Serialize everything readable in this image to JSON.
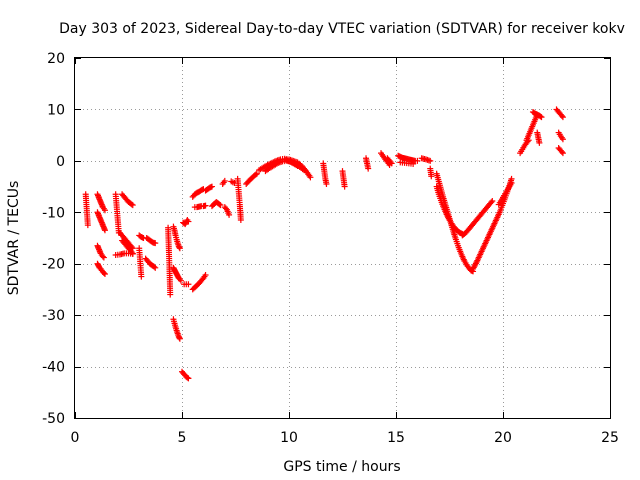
{
  "chart_data": {
    "type": "scatter",
    "title": "Day 303 of 2023, Sidereal Day-to-day VTEC variation (SDTVAR) for receiver kokv",
    "xlabel": "GPS time / hours",
    "ylabel": "SDTVAR / TECUs",
    "xlim": [
      0,
      25
    ],
    "ylim": [
      -50,
      20
    ],
    "x_ticks": [
      0,
      5,
      10,
      15,
      20,
      25
    ],
    "y_ticks": [
      20,
      10,
      0,
      -10,
      -20,
      -30,
      -40,
      -50
    ],
    "x_tick_labels": [
      "0",
      "5",
      "10",
      "15",
      "20",
      "25"
    ],
    "y_tick_labels": [
      "20",
      "10",
      "0",
      "-10",
      "-20",
      "-30",
      "-40",
      "-50"
    ],
    "grid": true,
    "marker": "+",
    "series": [
      {
        "name": "kokv",
        "color": "#ff0000",
        "segments": [
          {
            "x": [
              0.5,
              0.6
            ],
            "y": [
              -6.5,
              -12.5
            ]
          },
          {
            "x": [
              1.05,
              1.1,
              1.15,
              1.2,
              1.25,
              1.3,
              1.35,
              1.4
            ],
            "y": [
              -6.5,
              -7.0,
              -7.5,
              -8.0,
              -8.5,
              -9.0,
              -9.3,
              -9.6
            ]
          },
          {
            "x": [
              1.05,
              1.1,
              1.15,
              1.2,
              1.25,
              1.3,
              1.35,
              1.4
            ],
            "y": [
              -10.0,
              -10.5,
              -11.0,
              -11.5,
              -12.0,
              -12.5,
              -13.0,
              -13.5
            ]
          },
          {
            "x": [
              1.05,
              1.1,
              1.15,
              1.2,
              1.25,
              1.3,
              1.35
            ],
            "y": [
              -16.5,
              -17.0,
              -17.5,
              -18.0,
              -18.3,
              -18.6,
              -18.8
            ]
          },
          {
            "x": [
              1.05,
              1.1,
              1.15,
              1.2,
              1.25,
              1.3,
              1.35,
              1.4
            ],
            "y": [
              -20.0,
              -20.4,
              -20.8,
              -21.0,
              -21.3,
              -21.6,
              -21.8,
              -22.0
            ]
          },
          {
            "x": [
              1.9,
              2.0,
              2.05
            ],
            "y": [
              -6.5,
              -11.5,
              -14.0
            ]
          },
          {
            "x": [
              2.2,
              2.3,
              2.4,
              2.5,
              2.6,
              2.7
            ],
            "y": [
              -6.5,
              -7.0,
              -7.5,
              -8.0,
              -8.3,
              -8.6
            ]
          },
          {
            "x": [
              2.1,
              2.2,
              2.3,
              2.4,
              2.5,
              2.6,
              2.7
            ],
            "y": [
              -14.0,
              -14.5,
              -15.0,
              -15.5,
              -16.0,
              -16.5,
              -17.0
            ]
          },
          {
            "x": [
              2.2,
              2.3,
              2.4,
              2.5,
              2.6,
              2.7
            ],
            "y": [
              -15.5,
              -16.0,
              -16.5,
              -17.0,
              -17.5,
              -18.0
            ]
          },
          {
            "x": [
              1.9,
              2.1,
              2.3,
              2.5,
              2.7
            ],
            "y": [
              -18.3,
              -18.2,
              -18.0,
              -18.0,
              -18.1
            ]
          },
          {
            "x": [
              3.0,
              3.1
            ],
            "y": [
              -17.0,
              -22.5
            ]
          },
          {
            "x": [
              3.0,
              3.1,
              3.2
            ],
            "y": [
              -14.5,
              -14.8,
              -15.0
            ]
          },
          {
            "x": [
              3.35,
              3.45,
              3.55,
              3.65,
              3.75
            ],
            "y": [
              -15.0,
              -15.3,
              -15.6,
              -15.9,
              -16.0
            ]
          },
          {
            "x": [
              3.3,
              3.4,
              3.5,
              3.6,
              3.7,
              3.75
            ],
            "y": [
              -19.0,
              -19.5,
              -20.0,
              -20.3,
              -20.6,
              -20.8
            ]
          },
          {
            "x": [
              4.35,
              4.4,
              4.45
            ],
            "y": [
              -13.0,
              -19.0,
              -26.0
            ]
          },
          {
            "x": [
              4.6,
              4.65,
              4.7,
              4.75,
              4.8,
              4.85,
              4.9
            ],
            "y": [
              -12.8,
              -13.5,
              -14.5,
              -15.3,
              -16.0,
              -16.6,
              -17.0
            ]
          },
          {
            "x": [
              4.6,
              4.65,
              4.7,
              4.75,
              4.8,
              4.85,
              4.9,
              4.95
            ],
            "y": [
              -20.8,
              -21.2,
              -21.6,
              -22.0,
              -22.4,
              -22.8,
              -23.0,
              -23.3
            ]
          },
          {
            "x": [
              4.6,
              4.65,
              4.7,
              4.75,
              4.8,
              4.85,
              4.9
            ],
            "y": [
              -30.8,
              -31.6,
              -32.3,
              -33.0,
              -33.6,
              -34.2,
              -34.6
            ]
          },
          {
            "x": [
              5.0,
              5.1,
              5.2,
              5.3
            ],
            "y": [
              -41.0,
              -41.5,
              -42.0,
              -42.3
            ]
          },
          {
            "x": [
              5.05,
              5.15,
              5.25,
              5.3
            ],
            "y": [
              -12.0,
              -12.3,
              -11.5,
              -11.8
            ]
          },
          {
            "x": [
              5.1,
              5.3
            ],
            "y": [
              -24.0,
              -24.0
            ]
          },
          {
            "x": [
              5.5,
              5.6,
              5.7,
              5.8,
              5.9,
              6.0,
              6.1
            ],
            "y": [
              -25.0,
              -24.6,
              -24.2,
              -23.8,
              -23.3,
              -22.8,
              -22.2
            ]
          },
          {
            "x": [
              5.5,
              5.6,
              5.7,
              5.8,
              5.9,
              6.0
            ],
            "y": [
              -7.0,
              -6.5,
              -6.2,
              -6.0,
              -5.7,
              -5.5
            ]
          },
          {
            "x": [
              5.6,
              5.7,
              5.8,
              5.9,
              6.0,
              6.1
            ],
            "y": [
              -9.0,
              -9.0,
              -8.9,
              -8.8,
              -8.8,
              -8.7
            ]
          },
          {
            "x": [
              6.1,
              6.2,
              6.3,
              6.4
            ],
            "y": [
              -5.8,
              -5.5,
              -5.2,
              -5.0
            ]
          },
          {
            "x": [
              6.4,
              6.5,
              6.6,
              6.7,
              6.8
            ],
            "y": [
              -8.8,
              -8.4,
              -8.0,
              -8.3,
              -8.6
            ]
          },
          {
            "x": [
              6.9,
              7.0
            ],
            "y": [
              -4.5,
              -3.9
            ]
          },
          {
            "x": [
              7.0,
              7.1,
              7.2
            ],
            "y": [
              -9.0,
              -9.5,
              -10.5
            ]
          },
          {
            "x": [
              7.3,
              7.45
            ],
            "y": [
              -4.0,
              -4.3
            ]
          },
          {
            "x": [
              7.6,
              7.7,
              7.75
            ],
            "y": [
              -3.5,
              -8.5,
              -11.5
            ]
          },
          {
            "x": [
              8.0,
              8.1,
              8.2,
              8.3,
              8.4,
              8.5
            ],
            "y": [
              -4.5,
              -4.0,
              -3.6,
              -3.2,
              -2.8,
              -2.5
            ]
          },
          {
            "x": [
              8.6,
              8.8,
              9.0,
              9.2,
              9.4,
              9.6,
              9.8,
              10.0,
              10.2,
              10.4,
              10.6,
              10.8,
              11.0
            ],
            "y": [
              -1.8,
              -1.3,
              -0.8,
              -0.4,
              0.0,
              0.3,
              0.4,
              0.3,
              0.0,
              -0.3,
              -1.0,
              -2.0,
              -3.2
            ]
          },
          {
            "x": [
              8.9,
              9.1,
              9.3,
              9.5,
              9.7,
              9.9,
              10.1,
              10.3,
              10.5,
              10.7
            ],
            "y": [
              -2.0,
              -1.4,
              -0.9,
              -0.4,
              -0.1,
              0.0,
              -0.2,
              -0.6,
              -1.2,
              -1.8
            ]
          },
          {
            "x": [
              9.8,
              10.0,
              10.2,
              10.4
            ],
            "y": [
              0.3,
              0.0,
              -0.5,
              -1.0
            ]
          },
          {
            "x": [
              11.6,
              11.65,
              11.7,
              11.75
            ],
            "y": [
              -0.5,
              -2.0,
              -3.5,
              -4.5
            ]
          },
          {
            "x": [
              12.5,
              12.55,
              12.6
            ],
            "y": [
              -2.0,
              -3.5,
              -5.0
            ]
          },
          {
            "x": [
              13.6,
              13.65,
              13.7
            ],
            "y": [
              0.5,
              -0.5,
              -1.5
            ]
          },
          {
            "x": [
              14.3,
              14.4,
              14.5,
              14.6,
              14.7
            ],
            "y": [
              1.5,
              0.9,
              0.3,
              -0.2,
              -0.8
            ]
          },
          {
            "x": [
              14.6,
              14.7,
              14.8
            ],
            "y": [
              0.5,
              0.0,
              -0.5
            ]
          },
          {
            "x": [
              15.1,
              15.2,
              15.3,
              15.4,
              15.5,
              15.6,
              15.7,
              15.8,
              15.9,
              16.0
            ],
            "y": [
              1.0,
              0.8,
              0.6,
              0.5,
              0.4,
              0.3,
              0.2,
              0.1,
              0.0,
              0.0
            ]
          },
          {
            "x": [
              15.2,
              15.4,
              15.6,
              15.8
            ],
            "y": [
              -0.3,
              -0.4,
              -0.5,
              -0.6
            ]
          },
          {
            "x": [
              16.2,
              16.4,
              16.6
            ],
            "y": [
              0.5,
              0.3,
              0.0
            ]
          },
          {
            "x": [
              16.6,
              16.65
            ],
            "y": [
              -1.5,
              -3.0
            ]
          },
          {
            "x": [
              16.9,
              17.0,
              17.1,
              17.2,
              17.3,
              17.4,
              17.5,
              17.6,
              17.7,
              17.8,
              17.9,
              18.0,
              18.1,
              18.2,
              18.3,
              18.4,
              18.5,
              18.6
            ],
            "y": [
              -2.5,
              -4.0,
              -5.5,
              -7.0,
              -8.4,
              -9.8,
              -11.2,
              -12.6,
              -14.0,
              -15.3,
              -16.5,
              -17.6,
              -18.6,
              -19.5,
              -20.2,
              -20.8,
              -21.3,
              -21.5
            ]
          },
          {
            "x": [
              16.9,
              17.0,
              17.1,
              17.2,
              17.3,
              17.4,
              17.5,
              17.6,
              17.7,
              17.8,
              17.9,
              18.0,
              18.1
            ],
            "y": [
              -5.0,
              -6.5,
              -7.7,
              -8.8,
              -9.8,
              -10.7,
              -11.5,
              -12.2,
              -12.8,
              -13.3,
              -13.7,
              -14.0,
              -14.2
            ]
          },
          {
            "x": [
              18.1,
              18.2,
              18.3,
              18.4,
              18.5,
              18.6,
              18.7,
              18.8,
              18.9,
              19.0,
              19.1,
              19.2,
              19.3,
              19.4,
              19.5
            ],
            "y": [
              -14.5,
              -14.2,
              -13.8,
              -13.3,
              -12.8,
              -12.3,
              -11.8,
              -11.3,
              -10.8,
              -10.3,
              -9.8,
              -9.3,
              -8.8,
              -8.3,
              -7.8
            ]
          },
          {
            "x": [
              18.6,
              18.7,
              18.8,
              18.9,
              19.0,
              19.1,
              19.2,
              19.3,
              19.4,
              19.5,
              19.6,
              19.7,
              19.8,
              19.9,
              20.0,
              20.1,
              20.2,
              20.3,
              20.4
            ],
            "y": [
              -21.0,
              -20.2,
              -19.4,
              -18.5,
              -17.6,
              -16.7,
              -15.8,
              -14.9,
              -14.0,
              -13.1,
              -12.2,
              -11.3,
              -10.4,
              -9.4,
              -8.3,
              -7.2,
              -6.0,
              -4.8,
              -3.5
            ]
          },
          {
            "x": [
              19.8,
              19.9,
              20.0,
              20.1,
              20.2,
              20.3,
              20.4
            ],
            "y": [
              -8.5,
              -7.8,
              -7.1,
              -6.4,
              -5.7,
              -5.0,
              -4.3
            ]
          },
          {
            "x": [
              20.8,
              20.9,
              21.0,
              21.1,
              21.2
            ],
            "y": [
              1.5,
              2.2,
              2.9,
              3.5,
              4.0
            ]
          },
          {
            "x": [
              21.1,
              21.2,
              21.3,
              21.4,
              21.5,
              21.6
            ],
            "y": [
              4.0,
              5.0,
              6.0,
              7.0,
              8.0,
              9.0
            ]
          },
          {
            "x": [
              21.4,
              21.5,
              21.6,
              21.7,
              21.8
            ],
            "y": [
              9.5,
              9.2,
              9.0,
              8.8,
              8.5
            ]
          },
          {
            "x": [
              21.6,
              21.65,
              21.7
            ],
            "y": [
              5.5,
              4.5,
              3.5
            ]
          },
          {
            "x": [
              22.5,
              22.6,
              22.7,
              22.8
            ],
            "y": [
              10.0,
              9.5,
              9.0,
              8.5
            ]
          },
          {
            "x": [
              22.6,
              22.7,
              22.8
            ],
            "y": [
              5.5,
              4.8,
              4.2
            ]
          },
          {
            "x": [
              22.6,
              22.7,
              22.8
            ],
            "y": [
              2.5,
              2.0,
              1.5
            ]
          }
        ]
      }
    ]
  }
}
